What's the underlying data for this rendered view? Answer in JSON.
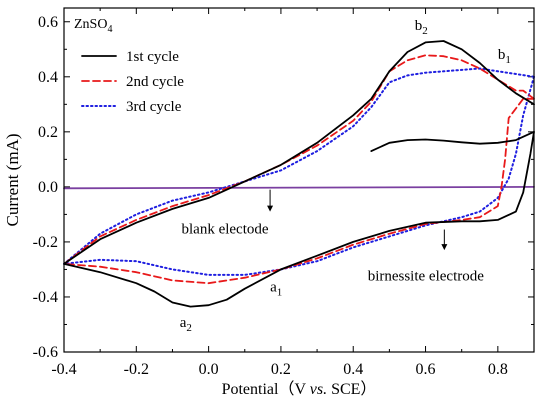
{
  "chart_data": {
    "type": "line",
    "title": "",
    "xlabel": "Potential（V vs. SCE）",
    "xlabel_parts": [
      "Potential（V ",
      "vs.",
      " SCE）"
    ],
    "ylabel": "Current (mA)",
    "xlim": [
      -0.4,
      0.9
    ],
    "ylim": [
      -0.6,
      0.65
    ],
    "x_ticks": [
      -0.4,
      -0.2,
      0.0,
      0.2,
      0.4,
      0.6,
      0.8
    ],
    "x_tick_labels": [
      "-0.4",
      "-0.2",
      "0.0",
      "0.2",
      "0.4",
      "0.6",
      "0.8"
    ],
    "y_ticks": [
      -0.6,
      -0.4,
      -0.2,
      0.0,
      0.2,
      0.4,
      0.6
    ],
    "y_tick_labels": [
      "-0.6",
      "-0.4",
      "-0.2",
      "0.0",
      "0.2",
      "0.4",
      "0.6"
    ],
    "grid": false,
    "legend_position": "top-left",
    "colors": {
      "s1": "#000000",
      "s2": "#e8191a",
      "s3": "#1f1fe0",
      "blank": "#7a3fa0"
    },
    "electrolyte_label": "ZnSO4",
    "series": [
      {
        "name": "1st cycle",
        "color": "#000000",
        "dash": "solid",
        "points": [
          [
            0.45,
            0.13
          ],
          [
            0.5,
            0.16
          ],
          [
            0.55,
            0.17
          ],
          [
            0.6,
            0.172
          ],
          [
            0.65,
            0.168
          ],
          [
            0.7,
            0.162
          ],
          [
            0.75,
            0.157
          ],
          [
            0.8,
            0.16
          ],
          [
            0.85,
            0.17
          ],
          [
            0.9,
            0.2
          ],
          [
            0.89,
            0.12
          ],
          [
            0.87,
            -0.02
          ],
          [
            0.85,
            -0.09
          ],
          [
            0.8,
            -0.12
          ],
          [
            0.75,
            -0.125
          ],
          [
            0.7,
            -0.125
          ],
          [
            0.6,
            -0.13
          ],
          [
            0.5,
            -0.16
          ],
          [
            0.4,
            -0.2
          ],
          [
            0.3,
            -0.25
          ],
          [
            0.2,
            -0.3
          ],
          [
            0.1,
            -0.37
          ],
          [
            0.05,
            -0.41
          ],
          [
            0.0,
            -0.43
          ],
          [
            -0.05,
            -0.435
          ],
          [
            -0.1,
            -0.42
          ],
          [
            -0.15,
            -0.38
          ],
          [
            -0.2,
            -0.35
          ],
          [
            -0.3,
            -0.31
          ],
          [
            -0.4,
            -0.28
          ],
          [
            -0.3,
            -0.19
          ],
          [
            -0.2,
            -0.13
          ],
          [
            -0.1,
            -0.08
          ],
          [
            0.0,
            -0.04
          ],
          [
            0.1,
            0.02
          ],
          [
            0.2,
            0.08
          ],
          [
            0.3,
            0.16
          ],
          [
            0.4,
            0.26
          ],
          [
            0.45,
            0.32
          ],
          [
            0.5,
            0.42
          ],
          [
            0.55,
            0.49
          ],
          [
            0.6,
            0.525
          ],
          [
            0.65,
            0.53
          ],
          [
            0.7,
            0.5
          ],
          [
            0.75,
            0.45
          ],
          [
            0.8,
            0.39
          ],
          [
            0.85,
            0.34
          ],
          [
            0.9,
            0.3
          ]
        ]
      },
      {
        "name": "2nd cycle",
        "color": "#e8191a",
        "dash": "dashed",
        "points": [
          [
            0.9,
            0.32
          ],
          [
            0.87,
            0.32
          ],
          [
            0.83,
            0.25
          ],
          [
            0.82,
            0.1
          ],
          [
            0.81,
            0.0
          ],
          [
            0.8,
            -0.07
          ],
          [
            0.75,
            -0.11
          ],
          [
            0.7,
            -0.12
          ],
          [
            0.6,
            -0.135
          ],
          [
            0.5,
            -0.17
          ],
          [
            0.4,
            -0.21
          ],
          [
            0.3,
            -0.26
          ],
          [
            0.2,
            -0.3
          ],
          [
            0.1,
            -0.33
          ],
          [
            0.0,
            -0.35
          ],
          [
            -0.1,
            -0.34
          ],
          [
            -0.2,
            -0.31
          ],
          [
            -0.3,
            -0.29
          ],
          [
            -0.4,
            -0.28
          ],
          [
            -0.3,
            -0.18
          ],
          [
            -0.2,
            -0.12
          ],
          [
            -0.1,
            -0.07
          ],
          [
            0.0,
            -0.03
          ],
          [
            0.1,
            0.02
          ],
          [
            0.2,
            0.08
          ],
          [
            0.3,
            0.15
          ],
          [
            0.4,
            0.24
          ],
          [
            0.45,
            0.31
          ],
          [
            0.5,
            0.42
          ],
          [
            0.55,
            0.46
          ],
          [
            0.6,
            0.478
          ],
          [
            0.65,
            0.475
          ],
          [
            0.7,
            0.46
          ],
          [
            0.75,
            0.43
          ],
          [
            0.8,
            0.39
          ],
          [
            0.85,
            0.35
          ],
          [
            0.87,
            0.35
          ],
          [
            0.9,
            0.32
          ]
        ]
      },
      {
        "name": "3rd cycle",
        "color": "#1f1fe0",
        "dash": "dotted",
        "points": [
          [
            0.9,
            0.4
          ],
          [
            0.87,
            0.26
          ],
          [
            0.85,
            0.12
          ],
          [
            0.83,
            0.03
          ],
          [
            0.8,
            -0.04
          ],
          [
            0.75,
            -0.09
          ],
          [
            0.7,
            -0.11
          ],
          [
            0.6,
            -0.14
          ],
          [
            0.5,
            -0.18
          ],
          [
            0.4,
            -0.22
          ],
          [
            0.3,
            -0.27
          ],
          [
            0.2,
            -0.3
          ],
          [
            0.1,
            -0.32
          ],
          [
            0.0,
            -0.32
          ],
          [
            -0.1,
            -0.3
          ],
          [
            -0.2,
            -0.27
          ],
          [
            -0.3,
            -0.265
          ],
          [
            -0.4,
            -0.28
          ],
          [
            -0.3,
            -0.17
          ],
          [
            -0.2,
            -0.1
          ],
          [
            -0.1,
            -0.05
          ],
          [
            0.0,
            -0.02
          ],
          [
            0.1,
            0.02
          ],
          [
            0.2,
            0.06
          ],
          [
            0.3,
            0.13
          ],
          [
            0.4,
            0.22
          ],
          [
            0.45,
            0.29
          ],
          [
            0.5,
            0.38
          ],
          [
            0.55,
            0.405
          ],
          [
            0.6,
            0.415
          ],
          [
            0.65,
            0.42
          ],
          [
            0.7,
            0.425
          ],
          [
            0.75,
            0.43
          ],
          [
            0.8,
            0.42
          ],
          [
            0.85,
            0.41
          ],
          [
            0.9,
            0.4
          ]
        ]
      },
      {
        "color": "#7a3fa0",
        "dash": "solid",
        "points": [
          [
            -0.4,
            -0.005
          ],
          [
            0.9,
            0.0
          ]
        ]
      }
    ],
    "annotations": [
      {
        "text": "b",
        "sub": "2",
        "x": 0.57,
        "y": 0.57
      },
      {
        "text": "b",
        "sub": "1",
        "x": 0.8,
        "y": 0.465
      },
      {
        "text": "a",
        "sub": "1",
        "x": 0.17,
        "y": -0.38
      },
      {
        "text": "a",
        "sub": "2",
        "x": -0.08,
        "y": -0.51
      },
      {
        "text": "blank electode",
        "x": -0.075,
        "y": -0.17
      },
      {
        "text": "birnessite electrode",
        "x": 0.44,
        "y": -0.34
      }
    ],
    "arrows": [
      {
        "from": [
          0.17,
          -0.01
        ],
        "to": [
          0.17,
          -0.09
        ]
      },
      {
        "from": [
          0.652,
          -0.155
        ],
        "to": [
          0.652,
          -0.23
        ]
      }
    ]
  }
}
